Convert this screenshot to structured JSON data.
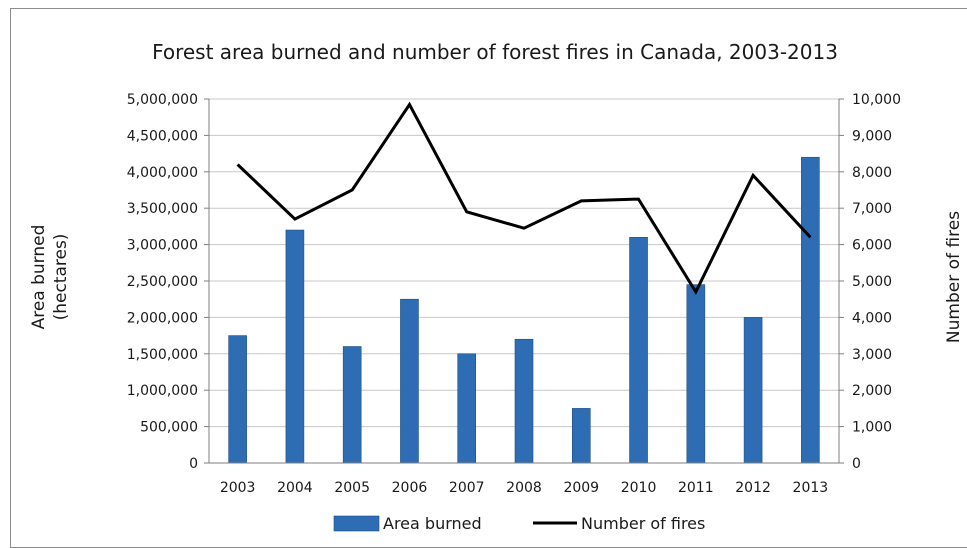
{
  "chart_data": {
    "type": "bar",
    "title": "Forest area burned and number of forest fires in Canada, 2003-2013",
    "categories": [
      "2003",
      "2004",
      "2005",
      "2006",
      "2007",
      "2008",
      "2009",
      "2010",
      "2011",
      "2012",
      "2013"
    ],
    "series": [
      {
        "name": "Area burned",
        "type": "bar",
        "axis": "left",
        "color": "#2e6db4",
        "values": [
          1750000,
          3200000,
          1600000,
          2250000,
          1500000,
          1700000,
          750000,
          3100000,
          2450000,
          2000000,
          4200000
        ]
      },
      {
        "name": "Number of fires",
        "type": "line",
        "axis": "right",
        "color": "#000000",
        "values": [
          8200,
          6700,
          7500,
          9850,
          6900,
          6450,
          7200,
          7250,
          4700,
          7900,
          6200
        ]
      }
    ],
    "ylabel_left_line1": "Area burned",
    "ylabel_left_line2": "(hectares)",
    "ylabel_right": "Number of fires",
    "ylim_left": [
      0,
      5000000
    ],
    "ylim_right": [
      0,
      10000
    ],
    "yticks_left": [
      "0",
      "500,000",
      "1,000,000",
      "1,500,000",
      "2,000,000",
      "2,500,000",
      "3,000,000",
      "3,500,000",
      "4,000,000",
      "4,500,000",
      "5,000,000"
    ],
    "yticks_right": [
      "0",
      "1,000",
      "2,000",
      "3,000",
      "4,000",
      "5,000",
      "6,000",
      "7,000",
      "8,000",
      "9,000",
      "10,000"
    ],
    "grid": true,
    "legend_position": "bottom"
  }
}
